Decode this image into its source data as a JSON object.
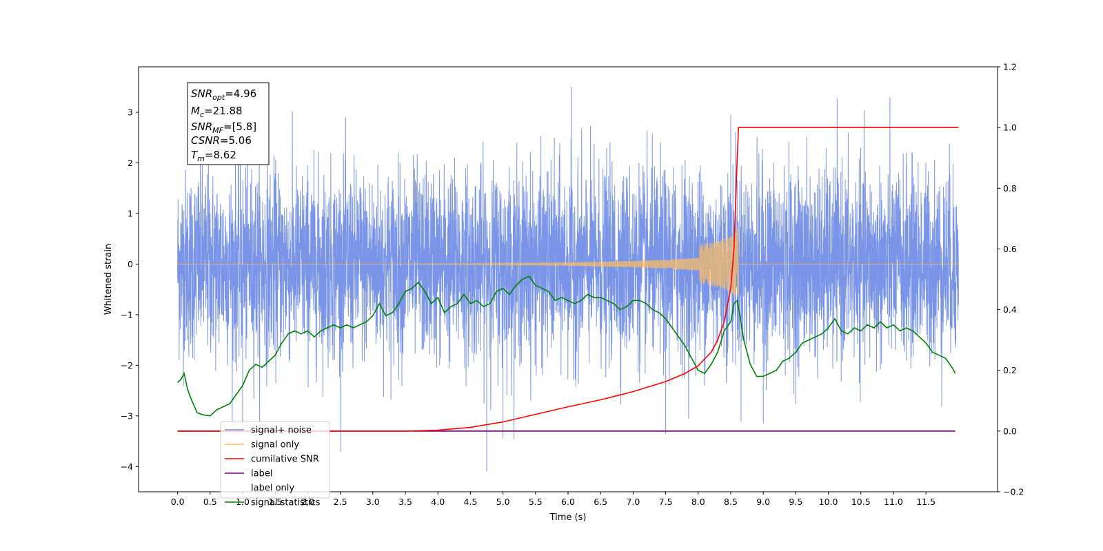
{
  "chart_data": {
    "type": "line",
    "xlabel": "Time (s)",
    "ylabel_left": "Whitened strain",
    "ylabel_right": "",
    "xlim": [
      -0.6,
      12.6
    ],
    "ylim_left": [
      -4.5,
      3.9
    ],
    "ylim_right": [
      -0.2,
      1.2
    ],
    "x_ticks": [
      "0.0",
      "0.5",
      "1.0",
      "1.5",
      "2.0",
      "2.5",
      "3.0",
      "3.5",
      "4.0",
      "4.5",
      "5.0",
      "5.5",
      "6.0",
      "6.5",
      "7.0",
      "7.5",
      "8.0",
      "8.5",
      "9.0",
      "9.5",
      "10.0",
      "10.5",
      "11.0",
      "11.5"
    ],
    "y_ticks_left": [
      "3",
      "2",
      "1",
      "0",
      "−1",
      "−2",
      "−3",
      "−4"
    ],
    "y_ticks_right": [
      "1.2",
      "1.0",
      "0.8",
      "0.6",
      "0.4",
      "0.2",
      "0.0",
      "−0.2"
    ],
    "grid": false,
    "legend_position": "lower-left",
    "info_box": [
      {
        "sym": "SNR",
        "sub": "opt",
        "val": "=4.96"
      },
      {
        "sym": "M",
        "sub": "c",
        "val": "=21.88"
      },
      {
        "sym": "SNR",
        "sub": "MF",
        "val": "=[5.8]"
      },
      {
        "sym": "CSNR",
        "sub": "",
        "val": "=5.06"
      },
      {
        "sym": "T",
        "sub": "m",
        "val": "=8.62"
      }
    ],
    "noise": {
      "x_range": [
        0.0,
        12.0
      ],
      "amplitude_std": 1.0,
      "min": -4.1,
      "max": 3.5
    },
    "chirp": {
      "start": 3.5,
      "merger": 8.62,
      "peak_amplitude": 0.85
    },
    "series": [
      {
        "name": "signal+ noise",
        "color": "#6f8ce6",
        "axis": "left"
      },
      {
        "name": "signal only",
        "color": "#ffbf60",
        "axis": "left"
      },
      {
        "name": "cumilative SNR",
        "color": "#ff0000",
        "axis": "right",
        "x": [
          0.0,
          3.5,
          4.0,
          4.5,
          5.0,
          5.5,
          6.0,
          6.5,
          7.0,
          7.5,
          7.8,
          8.0,
          8.2,
          8.3,
          8.4,
          8.5,
          8.55,
          8.6,
          8.62,
          12.0
        ],
        "y": [
          0.0,
          0.0,
          0.003,
          0.012,
          0.03,
          0.055,
          0.08,
          0.103,
          0.13,
          0.163,
          0.19,
          0.215,
          0.26,
          0.3,
          0.36,
          0.47,
          0.6,
          0.9,
          1.0,
          1.0
        ]
      },
      {
        "name": "label",
        "color": "#800080",
        "axis": "right",
        "x": [
          0.0,
          11.95
        ],
        "y": [
          0.0,
          0.0
        ]
      },
      {
        "name": "label only",
        "color": "#a0a0a0",
        "axis": "right",
        "hidden": true
      },
      {
        "name": "signal statistics",
        "color": "#008000",
        "axis": "right",
        "x": [
          0.0,
          0.05,
          0.1,
          0.15,
          0.2,
          0.3,
          0.4,
          0.5,
          0.6,
          0.7,
          0.8,
          0.9,
          1.0,
          1.1,
          1.2,
          1.3,
          1.4,
          1.5,
          1.6,
          1.7,
          1.8,
          1.9,
          2.0,
          2.1,
          2.2,
          2.3,
          2.4,
          2.5,
          2.6,
          2.7,
          2.8,
          2.9,
          3.0,
          3.1,
          3.2,
          3.3,
          3.4,
          3.5,
          3.6,
          3.7,
          3.8,
          3.9,
          4.0,
          4.1,
          4.2,
          4.3,
          4.4,
          4.5,
          4.6,
          4.7,
          4.8,
          4.9,
          5.0,
          5.1,
          5.2,
          5.3,
          5.4,
          5.5,
          5.6,
          5.7,
          5.8,
          5.9,
          6.0,
          6.1,
          6.2,
          6.3,
          6.4,
          6.5,
          6.6,
          6.7,
          6.8,
          6.9,
          7.0,
          7.1,
          7.2,
          7.3,
          7.4,
          7.5,
          7.6,
          7.7,
          7.8,
          7.9,
          8.0,
          8.1,
          8.2,
          8.3,
          8.4,
          8.5,
          8.55,
          8.6,
          8.65,
          8.7,
          8.8,
          8.9,
          9.0,
          9.1,
          9.2,
          9.3,
          9.4,
          9.5,
          9.6,
          9.7,
          9.8,
          9.9,
          10.0,
          10.1,
          10.2,
          10.3,
          10.4,
          10.5,
          10.6,
          10.7,
          10.8,
          10.9,
          11.0,
          11.1,
          11.2,
          11.3,
          11.4,
          11.5,
          11.6,
          11.7,
          11.8,
          11.9,
          11.95
        ],
        "y": [
          0.16,
          0.17,
          0.19,
          0.14,
          0.11,
          0.06,
          0.053,
          0.05,
          0.07,
          0.08,
          0.09,
          0.12,
          0.15,
          0.2,
          0.22,
          0.21,
          0.23,
          0.25,
          0.29,
          0.32,
          0.33,
          0.32,
          0.33,
          0.31,
          0.33,
          0.34,
          0.35,
          0.34,
          0.35,
          0.34,
          0.35,
          0.36,
          0.38,
          0.42,
          0.38,
          0.39,
          0.42,
          0.46,
          0.47,
          0.49,
          0.46,
          0.42,
          0.44,
          0.39,
          0.41,
          0.42,
          0.45,
          0.42,
          0.43,
          0.41,
          0.42,
          0.46,
          0.47,
          0.45,
          0.48,
          0.5,
          0.51,
          0.48,
          0.47,
          0.46,
          0.43,
          0.44,
          0.43,
          0.42,
          0.43,
          0.45,
          0.44,
          0.44,
          0.43,
          0.42,
          0.4,
          0.41,
          0.43,
          0.43,
          0.42,
          0.4,
          0.39,
          0.37,
          0.34,
          0.31,
          0.28,
          0.24,
          0.2,
          0.19,
          0.22,
          0.26,
          0.33,
          0.36,
          0.42,
          0.43,
          0.37,
          0.3,
          0.22,
          0.18,
          0.18,
          0.19,
          0.2,
          0.23,
          0.24,
          0.26,
          0.29,
          0.3,
          0.31,
          0.32,
          0.34,
          0.37,
          0.33,
          0.32,
          0.34,
          0.33,
          0.35,
          0.34,
          0.36,
          0.34,
          0.35,
          0.33,
          0.34,
          0.33,
          0.31,
          0.29,
          0.26,
          0.25,
          0.24,
          0.21,
          0.19
        ]
      }
    ]
  }
}
